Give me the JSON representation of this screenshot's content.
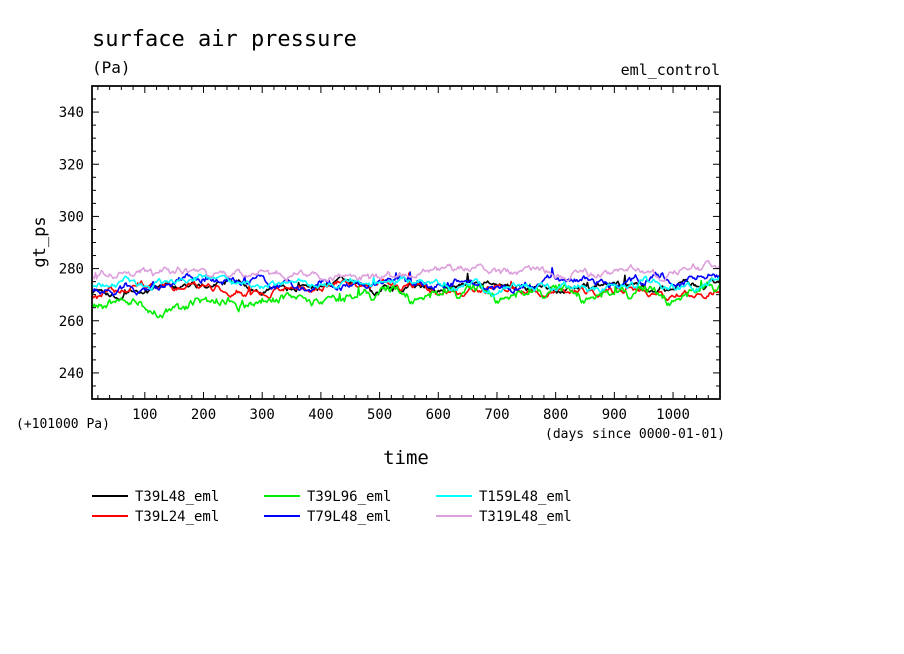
{
  "header": {
    "title": "surface air pressure",
    "units": "(Pa)",
    "experiment": "eml_control",
    "offset_note": "(+101000 Pa)",
    "time_note": "(days since 0000-01-01)"
  },
  "chart_data": {
    "type": "line",
    "title": "surface air pressure",
    "xlabel": "time",
    "ylabel": "gt_ps",
    "xlim": [
      10,
      1080
    ],
    "ylim": [
      230,
      350
    ],
    "x_ticks": [
      100,
      200,
      300,
      400,
      500,
      600,
      700,
      800,
      900,
      1000
    ],
    "y_ticks": [
      240,
      260,
      280,
      300,
      320,
      340
    ],
    "legend_position": "bottom-left",
    "series": [
      {
        "name": "T39L48_eml",
        "color": "#000000",
        "base": 273.5,
        "amp": 1.6,
        "seed": 11,
        "x": [
          10,
          100,
          200,
          300,
          400,
          500,
          600,
          700,
          800,
          900,
          1000,
          1080
        ],
        "values": [
          271,
          273,
          274,
          273,
          274,
          274,
          273,
          274,
          274,
          273,
          274,
          278
        ]
      },
      {
        "name": "T39L24_eml",
        "color": "#ff0000",
        "base": 272.5,
        "amp": 1.6,
        "seed": 23,
        "x": [
          10,
          100,
          200,
          300,
          400,
          500,
          600,
          700,
          800,
          900,
          1000,
          1080
        ],
        "values": [
          269,
          272,
          273,
          272,
          273,
          273,
          272,
          273,
          272,
          272,
          272,
          271
        ]
      },
      {
        "name": "T39L96_eml",
        "color": "#00ee00",
        "base": 266.5,
        "amp": 2.4,
        "seed": 37,
        "x": [
          10,
          100,
          200,
          300,
          400,
          500,
          600,
          700,
          800,
          900,
          1000,
          1080
        ],
        "values": [
          266,
          266,
          265,
          266,
          266,
          266,
          266,
          266,
          266,
          266,
          265,
          269
        ]
      },
      {
        "name": "T79L48_eml",
        "color": "#0000ff",
        "base": 273.8,
        "amp": 1.9,
        "seed": 53,
        "x": [
          10,
          100,
          200,
          300,
          400,
          500,
          600,
          700,
          800,
          900,
          1000,
          1080
        ],
        "values": [
          272,
          274,
          274,
          274,
          274,
          275,
          274,
          274,
          274,
          275,
          275,
          277
        ]
      },
      {
        "name": "T159L48_eml",
        "color": "#00ffff",
        "base": 274.0,
        "amp": 1.7,
        "seed": 71,
        "x": [
          10,
          100,
          200,
          300,
          400,
          500,
          600,
          700,
          800,
          900,
          1000,
          1080
        ],
        "values": [
          274,
          274,
          275,
          274,
          274,
          274,
          274,
          273,
          274,
          274,
          273,
          275
        ]
      },
      {
        "name": "T319L48_eml",
        "color": "#dda0dd",
        "base": 278.5,
        "amp": 1.8,
        "seed": 97,
        "x": [
          10,
          100,
          200,
          300,
          400,
          500,
          600,
          700,
          800,
          900,
          1000,
          1080
        ],
        "values": [
          276,
          278,
          279,
          279,
          278,
          279,
          280,
          278,
          278,
          278,
          279,
          281
        ]
      }
    ]
  }
}
